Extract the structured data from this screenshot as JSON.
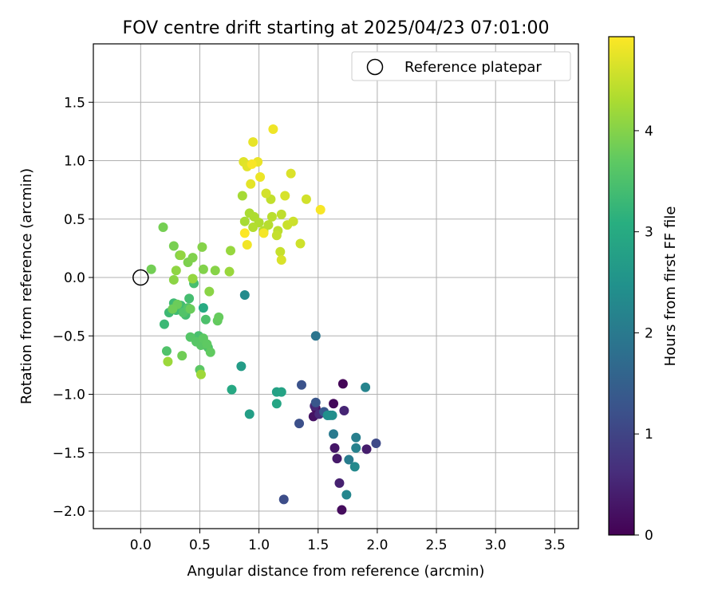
{
  "chart_data": {
    "type": "scatter",
    "title": "FOV centre drift starting at 2025/04/23 07:01:00",
    "xlabel": "Angular distance from reference (arcmin)",
    "ylabel": "Rotation from reference (arcmin)",
    "xlim": [
      -0.4,
      3.7
    ],
    "ylim": [
      -2.15,
      2.0
    ],
    "xticks": [
      "0.0",
      "0.5",
      "1.0",
      "1.5",
      "2.0",
      "2.5",
      "3.0",
      "3.5"
    ],
    "yticks": [
      "−2.0",
      "−1.5",
      "−1.0",
      "−0.5",
      "0.0",
      "0.5",
      "1.0",
      "1.5"
    ],
    "grid": true,
    "legend": {
      "position": "top-right",
      "entries": [
        "Reference platepar"
      ]
    },
    "reference_point": {
      "x": 0.0,
      "y": 0.0
    },
    "colorbar": {
      "label": "Hours from first FF file",
      "range": [
        0,
        4.93
      ],
      "ticks": [
        "0",
        "1",
        "2",
        "3",
        "4"
      ],
      "colormap": "viridis"
    },
    "series": [
      {
        "hours": [
          0.05,
          0.1,
          0.15,
          0.2,
          0.25,
          0.3,
          0.35,
          0.4,
          0.45,
          0.5,
          0.55,
          0.6
        ],
        "x": [
          1.71,
          1.63,
          1.7,
          1.48,
          1.46,
          1.64,
          1.66,
          1.91,
          1.68,
          1.72,
          1.47,
          1.51
        ],
        "y": [
          -0.91,
          -1.08,
          -1.99,
          -1.12,
          -1.19,
          -1.46,
          -1.55,
          -1.47,
          -1.76,
          -1.14,
          -1.1,
          -1.17
        ]
      },
      {
        "hours": [
          1.1,
          1.15,
          1.2,
          1.25,
          1.3,
          1.35,
          1.4
        ],
        "x": [
          1.99,
          1.21,
          1.34,
          1.36,
          1.48,
          1.55,
          1.58
        ],
        "y": [
          -1.42,
          -1.9,
          -1.25,
          -0.92,
          -1.07,
          -1.15,
          -1.18
        ]
      },
      {
        "hours": [
          1.9,
          1.95,
          2.0,
          2.05,
          2.1,
          2.15,
          2.2,
          2.25,
          2.3,
          2.35,
          2.4,
          2.45
        ],
        "x": [
          1.48,
          1.6,
          1.63,
          1.76,
          1.82,
          1.82,
          1.9,
          1.74,
          1.81,
          0.88,
          1.62,
          1.58
        ],
        "y": [
          -0.5,
          -1.18,
          -1.34,
          -1.56,
          -1.37,
          -1.46,
          -0.94,
          -1.86,
          -1.62,
          -0.15,
          -1.18,
          -1.18
        ]
      },
      {
        "hours": [
          2.7,
          2.75,
          2.8,
          2.85,
          2.9,
          2.95,
          3.0
        ],
        "x": [
          0.85,
          0.92,
          1.15,
          1.19,
          1.15,
          0.77,
          0.53
        ],
        "y": [
          -0.76,
          -1.17,
          -0.98,
          -0.98,
          -1.08,
          -0.96,
          -0.26
        ]
      },
      {
        "hours": [
          3.3,
          3.32,
          3.34,
          3.36,
          3.38,
          3.4,
          3.42,
          3.44,
          3.46,
          3.48,
          3.5,
          3.52,
          3.54,
          3.56,
          3.58,
          3.6,
          3.62,
          3.64,
          3.66,
          3.68,
          3.7,
          3.72,
          3.74,
          3.76,
          3.78,
          3.8,
          3.82,
          3.84
        ],
        "x": [
          0.2,
          0.24,
          0.28,
          0.3,
          0.34,
          0.38,
          0.41,
          0.45,
          0.49,
          0.52,
          0.55,
          0.57,
          0.22,
          0.36,
          0.4,
          0.42,
          0.47,
          0.51,
          0.5,
          0.53,
          0.56,
          0.59,
          0.65,
          0.66,
          0.42,
          0.31,
          0.27,
          0.35
        ],
        "y": [
          -0.4,
          -0.3,
          -0.22,
          -0.28,
          -0.24,
          -0.32,
          -0.18,
          -0.05,
          -0.5,
          -0.55,
          -0.36,
          -0.6,
          -0.63,
          -0.3,
          -0.26,
          -0.51,
          -0.55,
          -0.58,
          -0.79,
          -0.52,
          -0.57,
          -0.64,
          -0.37,
          -0.34,
          -0.27,
          -0.23,
          -0.27,
          -0.67
        ]
      },
      {
        "hours": [
          3.86,
          3.88,
          3.9,
          3.92,
          3.94,
          3.96,
          3.98,
          4.0,
          4.02,
          4.04,
          4.06,
          4.08,
          4.1,
          4.12,
          4.14,
          4.16,
          4.18,
          4.2
        ],
        "x": [
          0.09,
          0.19,
          0.28,
          0.33,
          0.4,
          0.44,
          0.53,
          0.52,
          0.63,
          0.58,
          0.28,
          0.3,
          0.34,
          0.44,
          0.76,
          0.75,
          0.23,
          0.51
        ],
        "y": [
          0.07,
          0.43,
          0.27,
          0.19,
          0.13,
          0.17,
          0.07,
          0.26,
          0.06,
          -0.12,
          -0.02,
          0.06,
          0.19,
          -0.01,
          0.23,
          0.05,
          -0.72,
          -0.83
        ]
      },
      {
        "hours": [
          4.25,
          4.27,
          4.29,
          4.31,
          4.33,
          4.35,
          4.37,
          4.39,
          4.41,
          4.43,
          4.45,
          4.47,
          4.49,
          4.51,
          4.53,
          4.55,
          4.57,
          4.59,
          4.61,
          4.63,
          4.65,
          4.67
        ],
        "x": [
          0.86,
          0.88,
          0.92,
          0.96,
          1.0,
          0.95,
          1.04,
          1.08,
          1.11,
          1.16,
          1.19,
          1.1,
          1.15,
          1.18,
          1.24,
          1.29,
          1.35,
          1.4,
          1.06,
          1.22,
          1.19,
          1.27
        ],
        "y": [
          0.7,
          0.48,
          0.55,
          0.52,
          0.47,
          0.43,
          0.4,
          0.45,
          0.52,
          0.4,
          0.54,
          0.67,
          0.36,
          0.22,
          0.45,
          0.48,
          0.29,
          0.67,
          0.72,
          0.7,
          0.15,
          0.89
        ]
      },
      {
        "hours": [
          4.7,
          4.72,
          4.74,
          4.76,
          4.78,
          4.8,
          4.82,
          4.84,
          4.86,
          4.88,
          4.9,
          4.92
        ],
        "x": [
          0.87,
          0.9,
          0.93,
          0.95,
          0.99,
          1.01,
          1.12,
          0.9,
          1.04,
          1.52,
          0.94,
          0.88
        ],
        "y": [
          0.99,
          0.95,
          0.8,
          1.16,
          0.99,
          0.86,
          1.27,
          0.28,
          0.38,
          0.58,
          0.97,
          0.38
        ]
      }
    ]
  }
}
